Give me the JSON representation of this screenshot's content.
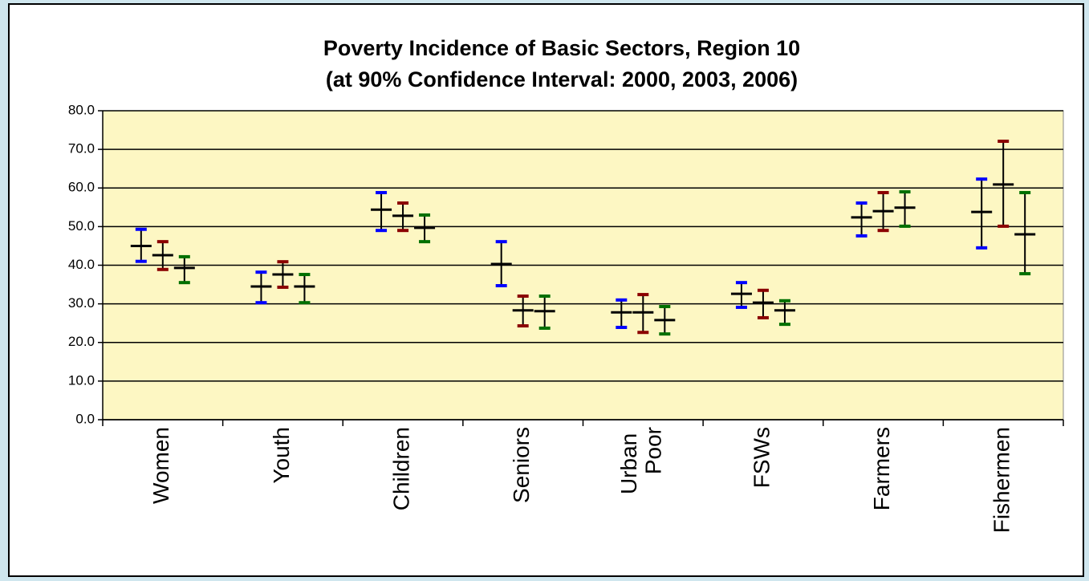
{
  "chart_data": {
    "type": "errorbar",
    "title": "Poverty Incidence of Basic Sectors, Region 10",
    "subtitle": "(at 90% Confidence Interval: 2000, 2003, 2006)",
    "categories": [
      "Women",
      "Youth",
      "Children",
      "Seniors",
      "Urban Poor",
      "FSWs",
      "Farmers",
      "Fishermen"
    ],
    "series": [
      {
        "color": "#0000ff",
        "values": [
          45.0,
          34.5,
          54.4,
          40.3,
          27.8,
          32.6,
          52.4,
          53.8
        ],
        "lows": [
          41.0,
          30.3,
          49.0,
          34.7,
          23.9,
          29.1,
          47.6,
          44.5
        ],
        "highs": [
          49.3,
          38.2,
          58.8,
          46.1,
          31.0,
          35.5,
          56.1,
          62.3
        ]
      },
      {
        "color": "#8b0000",
        "values": [
          42.6,
          37.6,
          52.8,
          28.3,
          27.8,
          30.3,
          54.0,
          60.9
        ],
        "lows": [
          38.9,
          34.3,
          49.0,
          24.3,
          22.6,
          26.4,
          49.0,
          50.1
        ],
        "highs": [
          46.1,
          40.9,
          56.1,
          32.0,
          32.4,
          33.5,
          58.8,
          72.1
        ]
      },
      {
        "color": "#007000",
        "values": [
          39.3,
          34.5,
          49.7,
          28.1,
          25.8,
          28.3,
          54.9,
          48.0
        ],
        "lows": [
          35.5,
          30.3,
          46.1,
          23.7,
          22.2,
          24.7,
          50.1,
          37.8
        ],
        "highs": [
          42.2,
          37.6,
          53.0,
          32.0,
          29.3,
          30.8,
          59.0,
          58.8
        ]
      }
    ],
    "ylim": [
      0,
      80
    ],
    "yticks": [
      {
        "value": 0,
        "label": "0.0"
      },
      {
        "value": 10,
        "label": "10.0"
      },
      {
        "value": 20,
        "label": "20.0"
      },
      {
        "value": 30,
        "label": "30.0"
      },
      {
        "value": 40,
        "label": "40.0"
      },
      {
        "value": 50,
        "label": "50.0"
      },
      {
        "value": 60,
        "label": "60.0"
      },
      {
        "value": 70,
        "label": "70.0"
      },
      {
        "value": 80,
        "label": "80.0"
      }
    ],
    "grid": true
  }
}
